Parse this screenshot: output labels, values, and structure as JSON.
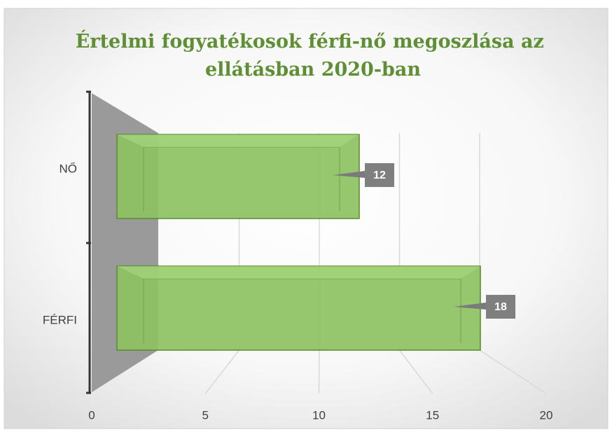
{
  "chart_data": {
    "type": "bar",
    "orientation": "horizontal",
    "title": "Értelmi fogyatékosok  férfi-nő megoszlása az ellátásban 2020-ban",
    "categories": [
      "NŐ",
      "FÉRFI"
    ],
    "values": [
      12,
      18
    ],
    "color": "#8dc262",
    "xlim": [
      0,
      20
    ],
    "xticks": [
      0,
      5,
      10,
      15,
      20
    ],
    "grid": true,
    "data_labels": true
  }
}
